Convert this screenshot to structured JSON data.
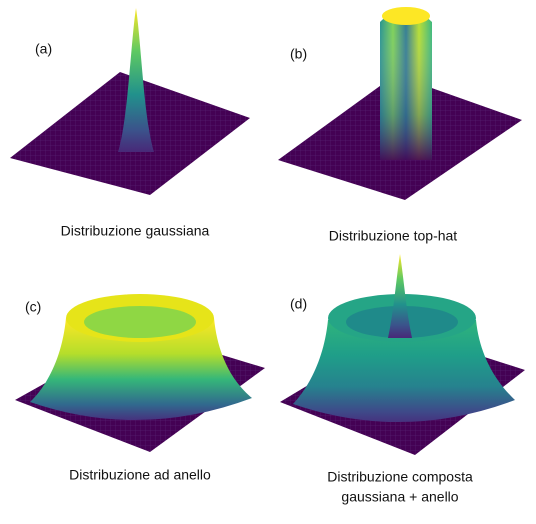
{
  "panels": [
    {
      "label": "(a)",
      "caption": [
        "Distribuzione gaussiana"
      ]
    },
    {
      "label": "(b)",
      "caption": [
        "Distribuzione top-hat"
      ]
    },
    {
      "label": "(c)",
      "caption": [
        "Distribuzione ad anello"
      ]
    },
    {
      "label": "(d)",
      "caption": [
        "Distribuzione composta",
        "gaussiana + anello"
      ]
    }
  ]
}
